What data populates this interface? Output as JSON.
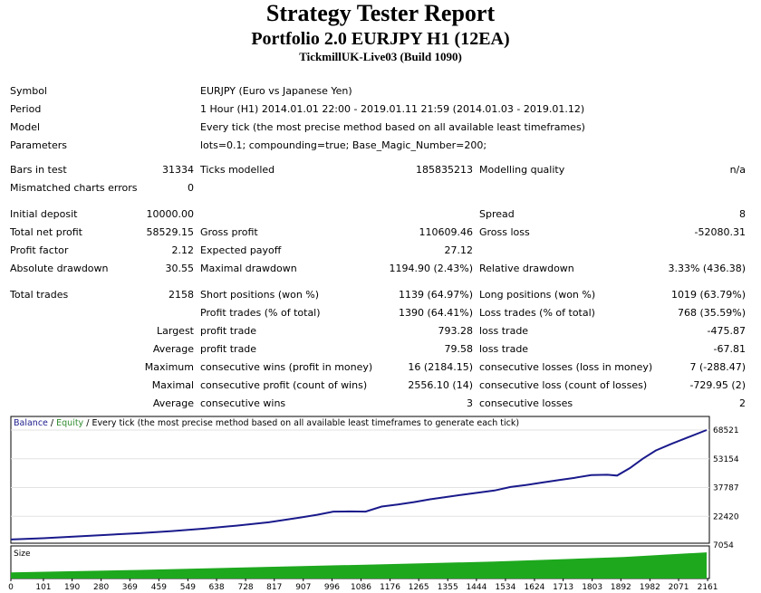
{
  "header": {
    "title": "Strategy Tester Report",
    "subtitle": "Portfolio 2.0 EURJPY H1 (12EA)",
    "server": "TickmillUK-Live03 (Build 1090)"
  },
  "info": {
    "symbol_label": "Symbol",
    "symbol_value": "EURJPY (Euro vs Japanese Yen)",
    "period_label": "Period",
    "period_value": "1 Hour (H1) 2014.01.01 22:00 - 2019.01.11 21:59 (2014.01.03 - 2019.01.12)",
    "model_label": "Model",
    "model_value": "Every tick (the most precise method based on all available least timeframes)",
    "params_label": "Parameters",
    "params_value": "lots=0.1; compounding=true; Base_Magic_Number=200;"
  },
  "stats": {
    "bars_label": "Bars in test",
    "bars_value": "31334",
    "ticks_label": "Ticks modelled",
    "ticks_value": "185835213",
    "quality_label": "Modelling quality",
    "quality_value": "n/a",
    "mismatch_label": "Mismatched charts errors",
    "mismatch_value": "0",
    "deposit_label": "Initial deposit",
    "deposit_value": "10000.00",
    "spread_label": "Spread",
    "spread_value": "8",
    "netprofit_label": "Total net profit",
    "netprofit_value": "58529.15",
    "grossprofit_label": "Gross profit",
    "grossprofit_value": "110609.46",
    "grossloss_label": "Gross loss",
    "grossloss_value": "-52080.31",
    "pf_label": "Profit factor",
    "pf_value": "2.12",
    "payoff_label": "Expected payoff",
    "payoff_value": "27.12",
    "absdd_label": "Absolute drawdown",
    "absdd_value": "30.55",
    "maxdd_label": "Maximal drawdown",
    "maxdd_value": "1194.90 (2.43%)",
    "reldd_label": "Relative drawdown",
    "reldd_value": "3.33% (436.38)",
    "trades_label": "Total trades",
    "trades_value": "2158",
    "short_label": "Short positions (won %)",
    "short_value": "1139 (64.97%)",
    "long_label": "Long positions (won %)",
    "long_value": "1019 (63.79%)",
    "ptrades_label": "Profit trades (% of total)",
    "ptrades_value": "1390 (64.41%)",
    "ltrades_label": "Loss trades (% of total)",
    "ltrades_value": "768 (35.59%)",
    "largest_label": "Largest",
    "largest_p_label": "profit trade",
    "largest_p_value": "793.28",
    "largest_l_label": "loss trade",
    "largest_l_value": "-475.87",
    "average_label": "Average",
    "average_p_label": "profit trade",
    "average_p_value": "79.58",
    "average_l_label": "loss trade",
    "average_l_value": "-67.81",
    "maximum_label": "Maximum",
    "maximum_p_label": "consecutive wins (profit in money)",
    "maximum_p_value": "16 (2184.15)",
    "maximum_l_label": "consecutive losses (loss in money)",
    "maximum_l_value": "7 (-288.47)",
    "maximal_label": "Maximal",
    "maximal_p_label": "consecutive profit (count of wins)",
    "maximal_p_value": "2556.10 (14)",
    "maximal_l_label": "consecutive loss (count of losses)",
    "maximal_l_value": "-729.95 (2)",
    "average2_label": "Average",
    "average2_p_label": "consecutive wins",
    "average2_p_value": "3",
    "average2_l_label": "consecutive losses",
    "average2_l_value": "2"
  },
  "chart_data": {
    "type": "line",
    "legend": {
      "balance": "Balance",
      "sep1": " / ",
      "equity": "Equity",
      "sep2": " / ",
      "tick": "Every tick (the most precise method based on all available least timeframes to generate each tick)"
    },
    "colors": {
      "balance": "#1a1a8c",
      "equity": "#2e8b2e",
      "size": "#1ea81e"
    },
    "y_ticks": [
      "68521",
      "53154",
      "37787",
      "22420",
      "7054"
    ],
    "y_tick_values": [
      68521,
      53154,
      37787,
      22420,
      7054
    ],
    "x_ticks": [
      "0",
      "101",
      "190",
      "280",
      "369",
      "459",
      "549",
      "638",
      "728",
      "817",
      "907",
      "996",
      "1086",
      "1176",
      "1265",
      "1355",
      "1444",
      "1534",
      "1624",
      "1713",
      "1803",
      "1892",
      "1982",
      "2071",
      "2161"
    ],
    "x_tick_values": [
      0,
      101,
      190,
      280,
      369,
      459,
      549,
      638,
      728,
      817,
      907,
      996,
      1086,
      1176,
      1265,
      1355,
      1444,
      1534,
      1624,
      1713,
      1803,
      1892,
      1982,
      2071,
      2161
    ],
    "xlim": [
      0,
      2158
    ],
    "ylim": [
      7054,
      68521
    ],
    "balance_points": [
      [
        0,
        10000
      ],
      [
        100,
        10700
      ],
      [
        200,
        11600
      ],
      [
        300,
        12500
      ],
      [
        400,
        13400
      ],
      [
        500,
        14500
      ],
      [
        600,
        15800
      ],
      [
        700,
        17400
      ],
      [
        800,
        19200
      ],
      [
        900,
        21800
      ],
      [
        950,
        23200
      ],
      [
        1000,
        24900
      ],
      [
        1050,
        25000
      ],
      [
        1100,
        24900
      ],
      [
        1150,
        27600
      ],
      [
        1200,
        28700
      ],
      [
        1250,
        30000
      ],
      [
        1300,
        31500
      ],
      [
        1350,
        32700
      ],
      [
        1400,
        33900
      ],
      [
        1450,
        35100
      ],
      [
        1500,
        36200
      ],
      [
        1550,
        38100
      ],
      [
        1600,
        39200
      ],
      [
        1650,
        40500
      ],
      [
        1700,
        41800
      ],
      [
        1750,
        43000
      ],
      [
        1800,
        44400
      ],
      [
        1850,
        44600
      ],
      [
        1880,
        44200
      ],
      [
        1920,
        48200
      ],
      [
        1960,
        53200
      ],
      [
        2000,
        57600
      ],
      [
        2050,
        61200
      ],
      [
        2100,
        64600
      ],
      [
        2158,
        68521
      ]
    ],
    "size_label": "Size",
    "size_points": [
      [
        0,
        0.2
      ],
      [
        400,
        0.28
      ],
      [
        800,
        0.38
      ],
      [
        1100,
        0.45
      ],
      [
        1500,
        0.55
      ],
      [
        1900,
        0.7
      ],
      [
        2158,
        0.85
      ]
    ]
  }
}
